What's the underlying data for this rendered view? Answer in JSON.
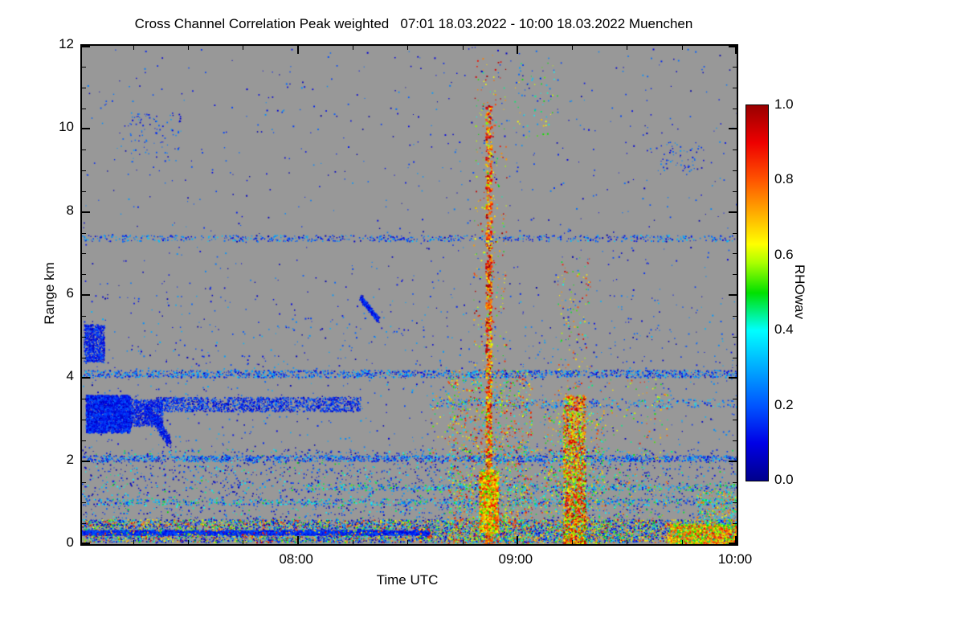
{
  "chart_data": {
    "type": "heatmap",
    "title": "Cross Channel Correlation Peak weighted   07:01 18.03.2022 - 10:00 18.03.2022 Muenchen",
    "xlabel": "Time UTC",
    "ylabel": "Range km",
    "colorbar_label": "RHOwav",
    "station": "Muenchen",
    "time_start": "07:01 18.03.2022",
    "time_end": "10:00 18.03.2022",
    "x_range_minutes": 179,
    "x_ticks": [
      {
        "label": "08:00",
        "minute": 59
      },
      {
        "label": "09:00",
        "minute": 119
      },
      {
        "label": "10:00",
        "minute": 179
      }
    ],
    "x_minor_minutes": [
      14,
      29,
      44,
      74,
      89,
      104,
      134,
      149,
      164
    ],
    "ylim": [
      0,
      12
    ],
    "y_ticks": [
      0,
      2,
      4,
      6,
      8,
      10,
      12
    ],
    "y_minor_step": 0.5,
    "colorbar_ticks": [
      1.0,
      0.8,
      0.6,
      0.4,
      0.2,
      0.0
    ],
    "colorbar_lim": [
      0.0,
      1.0
    ],
    "background_color": "#989898",
    "colormap_stops": [
      [
        0.0,
        "#00008B"
      ],
      [
        0.1,
        "#0000E6"
      ],
      [
        0.2,
        "#0055FF"
      ],
      [
        0.3,
        "#00AAFF"
      ],
      [
        0.4,
        "#00FFFF"
      ],
      [
        0.5,
        "#00E000"
      ],
      [
        0.58,
        "#AAFF00"
      ],
      [
        0.63,
        "#FFFF00"
      ],
      [
        0.72,
        "#FFA500"
      ],
      [
        0.8,
        "#FF5500"
      ],
      [
        0.9,
        "#EE0000"
      ],
      [
        1.0,
        "#990000"
      ]
    ],
    "features": [
      {
        "name": "sparse-noise-upper",
        "seed": 1,
        "t": [
          0,
          179
        ],
        "km": [
          6,
          12
        ],
        "count": 650,
        "v": [
          0.03,
          0.28
        ],
        "size": [
          1,
          2
        ]
      },
      {
        "name": "sparse-noise-mid",
        "seed": 2,
        "t": [
          0,
          179
        ],
        "km": [
          2.3,
          6
        ],
        "count": 1000,
        "v": [
          0.03,
          0.32
        ],
        "size": [
          1,
          2
        ]
      },
      {
        "name": "noise-low",
        "seed": 3,
        "t": [
          0,
          179
        ],
        "km": [
          0.55,
          2.3
        ],
        "count": 2600,
        "v": [
          0.03,
          0.5
        ],
        "v_bias": 1.6,
        "size": [
          1,
          2
        ]
      },
      {
        "name": "hline-7km35",
        "seed": 4,
        "t": [
          0,
          179
        ],
        "km": [
          7.3,
          7.45
        ],
        "count": 700,
        "v": [
          0.05,
          0.35
        ],
        "size": [
          1,
          2
        ]
      },
      {
        "name": "hline-4km1",
        "seed": 5,
        "t": [
          0,
          179
        ],
        "km": [
          4.02,
          4.2
        ],
        "count": 1600,
        "v": [
          0.05,
          0.35
        ],
        "size": [
          1,
          2
        ]
      },
      {
        "name": "hline-2km05",
        "seed": 6,
        "t": [
          0,
          179
        ],
        "km": [
          2.0,
          2.15
        ],
        "count": 1400,
        "v": [
          0.05,
          0.35
        ],
        "size": [
          1,
          2
        ]
      },
      {
        "name": "hline-3km4-left",
        "seed": 7,
        "t": [
          20,
          76
        ],
        "km": [
          3.2,
          3.55
        ],
        "count": 1500,
        "v": [
          0.04,
          0.25
        ],
        "size": [
          1,
          2
        ]
      },
      {
        "name": "hline-3km4-right",
        "seed": 8,
        "t": [
          95,
          179
        ],
        "km": [
          3.3,
          3.5
        ],
        "count": 350,
        "v": [
          0.08,
          0.4
        ],
        "size": [
          1,
          2
        ]
      },
      {
        "name": "hline-1km0",
        "seed": 28,
        "t": [
          0,
          179
        ],
        "km": [
          0.95,
          1.1
        ],
        "count": 700,
        "v": [
          0.1,
          0.5
        ],
        "size": [
          1,
          2
        ]
      },
      {
        "name": "hline-1km35",
        "seed": 29,
        "t": [
          60,
          179
        ],
        "km": [
          1.3,
          1.45
        ],
        "count": 500,
        "v": [
          0.1,
          0.55
        ],
        "size": [
          1,
          2
        ]
      },
      {
        "name": "blob-left-main",
        "seed": 9,
        "t": [
          1,
          13
        ],
        "km": [
          2.7,
          3.6
        ],
        "count": 2600,
        "v": [
          0.05,
          0.22
        ],
        "size": [
          1,
          2.5
        ]
      },
      {
        "name": "blob-left-tail",
        "seed": 10,
        "t": [
          11,
          22
        ],
        "km": [
          2.85,
          3.5
        ],
        "count": 900,
        "v": [
          0.05,
          0.22
        ],
        "size": [
          1,
          2
        ]
      },
      {
        "name": "blob-left-upper",
        "seed": 11,
        "t": [
          0.5,
          6
        ],
        "km": [
          4.4,
          5.3
        ],
        "count": 750,
        "v": [
          0.05,
          0.22
        ],
        "size": [
          1,
          2
        ]
      },
      {
        "name": "streak-diagonal",
        "seed": 12,
        "shape": "line",
        "t": [
          17.5,
          24
        ],
        "km": [
          3.3,
          2.45
        ],
        "jitter_t": 1.2,
        "jitter_km": 0.25,
        "count": 400,
        "v": [
          0.05,
          0.2
        ],
        "size": [
          1,
          2
        ]
      },
      {
        "name": "squiggle-5km6",
        "seed": 13,
        "shape": "line",
        "t": [
          76,
          81
        ],
        "km": [
          5.95,
          5.4
        ],
        "jitter_t": 0.8,
        "jitter_km": 0.12,
        "count": 260,
        "v": [
          0.05,
          0.22
        ],
        "size": [
          1,
          2
        ]
      },
      {
        "name": "upper-left-dots",
        "seed": 14,
        "t": [
          13,
          27
        ],
        "km": [
          9.2,
          10.4
        ],
        "count": 90,
        "v": [
          0.05,
          0.3
        ],
        "size": [
          1,
          2
        ]
      },
      {
        "name": "upper-right-dots",
        "seed": 30,
        "t": [
          158,
          170
        ],
        "km": [
          8.9,
          9.7
        ],
        "count": 60,
        "v": [
          0.05,
          0.3
        ],
        "size": [
          1,
          2
        ]
      },
      {
        "name": "upper-col-dots",
        "seed": 31,
        "t": [
          118,
          130
        ],
        "km": [
          9.8,
          11.6
        ],
        "count": 70,
        "v": [
          0.1,
          0.7
        ],
        "size": [
          1,
          2
        ]
      },
      {
        "name": "bottom-band",
        "seed": 15,
        "t": [
          0,
          179
        ],
        "km": [
          0.05,
          0.6
        ],
        "count": 7000,
        "v": [
          0.05,
          0.85
        ],
        "v_bias": 2.2,
        "size": [
          1,
          2
        ]
      },
      {
        "name": "bottom-blue-line",
        "seed": 16,
        "t": [
          0,
          95
        ],
        "km": [
          0.24,
          0.34
        ],
        "count": 2600,
        "v": [
          0.08,
          0.22
        ],
        "size": [
          1.5,
          2.5
        ]
      },
      {
        "name": "bottom-warm-sprinkle",
        "seed": 17,
        "t": [
          0,
          179
        ],
        "km": [
          0.05,
          0.6
        ],
        "count": 1200,
        "v": [
          0.45,
          0.95
        ],
        "size": [
          1,
          2
        ]
      },
      {
        "name": "warm-speckle-mid",
        "seed": 27,
        "t": [
          95,
          160
        ],
        "km": [
          0.5,
          4
        ],
        "count": 500,
        "v": [
          0.4,
          0.9
        ],
        "size": [
          1,
          2
        ]
      },
      {
        "name": "column-0852",
        "seed": 18,
        "t": [
          110.3,
          111.8
        ],
        "km": [
          0,
          10.6
        ],
        "count": 1100,
        "v": [
          0.55,
          1.0
        ],
        "v_bias": 0.8,
        "km_bias": 1.7,
        "size": [
          1.5,
          3
        ]
      },
      {
        "name": "column-0852-core",
        "seed": 19,
        "t": [
          108.5,
          113.5
        ],
        "km": [
          0.3,
          1.8
        ],
        "count": 1600,
        "v": [
          0.5,
          0.9
        ],
        "size": [
          1.5,
          3
        ]
      },
      {
        "name": "column-0852-halo",
        "seed": 20,
        "t": [
          100,
          123
        ],
        "km": [
          0,
          4.2
        ],
        "count": 1600,
        "v": [
          0.25,
          0.95
        ],
        "km_bias": 1.4,
        "size": [
          1,
          2
        ]
      },
      {
        "name": "column-0852-upper",
        "seed": 21,
        "t": [
          107,
          116
        ],
        "km": [
          4,
          11.8
        ],
        "count": 260,
        "v": [
          0.4,
          1.0
        ],
        "size": [
          1,
          2
        ]
      },
      {
        "name": "column-0915",
        "seed": 22,
        "t": [
          131.5,
          137.5
        ],
        "km": [
          0,
          3.6
        ],
        "count": 1600,
        "v": [
          0.5,
          1.0
        ],
        "km_bias": 1.3,
        "size": [
          1.5,
          2.5
        ]
      },
      {
        "name": "column-0915-halo",
        "seed": 23,
        "t": [
          126,
          143
        ],
        "km": [
          0,
          3.2
        ],
        "count": 700,
        "v": [
          0.25,
          0.9
        ],
        "km_bias": 1.2,
        "size": [
          1,
          2
        ]
      },
      {
        "name": "column-0915-upper",
        "seed": 24,
        "t": [
          130,
          139
        ],
        "km": [
          3.6,
          7
        ],
        "count": 110,
        "v": [
          0.4,
          0.95
        ],
        "size": [
          1,
          2
        ]
      },
      {
        "name": "bottom-right-cluster",
        "seed": 25,
        "t": [
          160,
          179
        ],
        "km": [
          0.02,
          0.5
        ],
        "count": 1100,
        "v": [
          0.45,
          0.9
        ],
        "size": [
          1.5,
          2.5
        ]
      },
      {
        "name": "right-edge-mixed",
        "seed": 26,
        "t": [
          168,
          179
        ],
        "km": [
          0.5,
          1.3
        ],
        "count": 300,
        "v": [
          0.2,
          0.85
        ],
        "size": [
          1,
          2
        ]
      }
    ]
  }
}
